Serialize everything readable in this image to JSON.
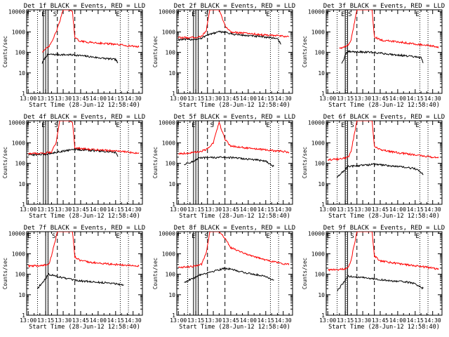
{
  "figure": {
    "black_color": "#000000",
    "red_color": "#ff0000"
  },
  "chart_data": [
    {
      "type": "line",
      "title": "Det 1f BLACK = Events, RED = LLD",
      "xlabel": "Start Time (28-Jun-12 12:58:40)",
      "ylabel": "Counts/sec",
      "x_ticks": [
        "13:00",
        "13:15",
        "13:30",
        "13:45",
        "14:00",
        "14:15",
        "14:30"
      ],
      "y_ticks": [
        "1",
        "10",
        "100",
        "1000",
        "10000"
      ],
      "xlim": [
        "12:58:40",
        "14:38:00"
      ],
      "ylim": [
        1,
        12000
      ],
      "y_scale": "log",
      "markers": [
        {
          "time": "13:13",
          "label": "E"
        },
        {
          "time": "13:23",
          "label": "S"
        },
        {
          "time": "14:17",
          "label": "E"
        }
      ],
      "vlines_dotted": [
        "13:08",
        "13:17",
        "14:19",
        "14:26"
      ],
      "vlines_solid": [
        "13:13",
        "13:15",
        "13:17"
      ],
      "vlines_dashed": [
        "13:25",
        "13:40"
      ],
      "series": [
        {
          "color": "black",
          "x": [
            "13:12",
            "13:14",
            "13:15",
            "13:16",
            "13:17",
            "13:40",
            "13:50",
            "14:00",
            "14:10",
            "14:15",
            "14:17"
          ],
          "y": [
            30,
            50,
            60,
            70,
            80,
            75,
            65,
            55,
            48,
            45,
            30
          ]
        },
        {
          "color": "red",
          "x": [
            "13:12",
            "13:14",
            "13:16",
            "13:18",
            "13:20",
            "13:25",
            "13:30",
            "13:35",
            "13:38",
            "13:40",
            "13:45",
            "13:50",
            "14:00",
            "14:10",
            "14:20",
            "14:30",
            "14:35"
          ],
          "y": [
            110,
            130,
            160,
            200,
            300,
            1400,
            12000,
            12000,
            10000,
            500,
            350,
            320,
            290,
            260,
            230,
            200,
            190
          ]
        }
      ]
    },
    {
      "type": "line",
      "title": "Det 2f BLACK = Events, RED = LLD",
      "xlabel": "Start Time (28-Jun-12 12:58:40)",
      "ylabel": "Counts/sec",
      "x_ticks": [
        "13:00",
        "13:15",
        "13:30",
        "13:45",
        "14:00",
        "14:15",
        "14:30"
      ],
      "y_ticks": [
        "1",
        "10",
        "100",
        "1000",
        "10000"
      ],
      "xlim": [
        "12:58:40",
        "14:38:00"
      ],
      "ylim": [
        1,
        12000
      ],
      "y_scale": "log",
      "markers": [
        {
          "time": "13:13",
          "label": "E"
        },
        {
          "time": "13:24",
          "label": "S"
        },
        {
          "time": "14:17",
          "label": "E"
        }
      ],
      "vlines_dotted": [
        "13:08",
        "13:17",
        "14:19",
        "14:26"
      ],
      "vlines_solid": [
        "13:13",
        "13:15",
        "13:17"
      ],
      "vlines_dashed": [
        "13:25",
        "13:40"
      ],
      "series": [
        {
          "color": "black",
          "x": [
            "13:00",
            "13:10",
            "13:15",
            "13:20",
            "13:24",
            "13:35",
            "13:40",
            "13:45",
            "14:00",
            "14:15",
            "14:25",
            "14:28"
          ],
          "y": [
            420,
            430,
            440,
            470,
            700,
            1000,
            1000,
            800,
            650,
            560,
            480,
            250
          ]
        },
        {
          "color": "red",
          "x": [
            "13:00",
            "13:10",
            "13:15",
            "13:20",
            "13:24",
            "13:27",
            "13:35",
            "13:40",
            "13:45",
            "14:00",
            "14:15",
            "14:30",
            "14:35"
          ],
          "y": [
            520,
            530,
            550,
            600,
            1200,
            12000,
            12000,
            2000,
            1000,
            850,
            700,
            620,
            590
          ]
        }
      ]
    },
    {
      "type": "line",
      "title": "Det 3f BLACK = Events, RED = LLD",
      "xlabel": "Start Time (28-Jun-12 12:58:40)",
      "ylabel": "Counts/sec",
      "x_ticks": [
        "13:00",
        "13:15",
        "13:30",
        "13:45",
        "14:00",
        "14:15",
        "14:30"
      ],
      "y_ticks": [
        "1",
        "10",
        "100",
        "1000",
        "10000"
      ],
      "xlim": [
        "12:58:40",
        "14:38:00"
      ],
      "ylim": [
        1,
        12000
      ],
      "y_scale": "log",
      "markers": [
        {
          "time": "13:13",
          "label": "E"
        },
        {
          "time": "13:19",
          "label": "S"
        },
        {
          "time": "14:17",
          "label": "E"
        }
      ],
      "vlines_dotted": [
        "13:08",
        "13:16",
        "14:19",
        "14:26"
      ],
      "vlines_solid": [
        "13:15",
        "13:17"
      ],
      "vlines_dashed": [
        "13:25",
        "13:40"
      ],
      "series": [
        {
          "color": "black",
          "x": [
            "13:12",
            "13:14",
            "13:15",
            "13:16",
            "13:17",
            "13:40",
            "13:50",
            "14:00",
            "14:10",
            "14:15",
            "14:20",
            "14:22"
          ],
          "y": [
            30,
            50,
            70,
            90,
            110,
            100,
            85,
            75,
            65,
            60,
            55,
            30
          ]
        },
        {
          "color": "red",
          "x": [
            "13:10",
            "13:14",
            "13:16",
            "13:18",
            "13:20",
            "13:25",
            "13:30",
            "13:38",
            "13:40",
            "13:45",
            "14:00",
            "14:15",
            "14:30",
            "14:35"
          ],
          "y": [
            160,
            180,
            200,
            250,
            400,
            12000,
            12000,
            12000,
            600,
            400,
            330,
            260,
            200,
            180
          ]
        }
      ]
    },
    {
      "type": "line",
      "title": "Det 4f BLACK = Events, RED = LLD",
      "xlabel": "Start Time (28-Jun-12 12:58:40)",
      "ylabel": "Counts/sec",
      "x_ticks": [
        "13:00",
        "13:15",
        "13:30",
        "13:45",
        "14:00",
        "14:15",
        "14:30"
      ],
      "y_ticks": [
        "1",
        "10",
        "100",
        "1000",
        "10000"
      ],
      "xlim": [
        "12:58:40",
        "14:38:00"
      ],
      "ylim": [
        1,
        12000
      ],
      "y_scale": "log",
      "markers": [
        {
          "time": "13:13",
          "label": "E"
        },
        {
          "time": "13:24",
          "label": "S"
        },
        {
          "time": "14:17",
          "label": "E"
        }
      ],
      "vlines_dotted": [
        "13:08",
        "13:17",
        "14:19",
        "14:26"
      ],
      "vlines_solid": [
        "13:13",
        "13:15",
        "13:17"
      ],
      "vlines_dashed": [
        "13:25",
        "13:40"
      ],
      "series": [
        {
          "color": "black",
          "x": [
            "13:00",
            "13:10",
            "13:15",
            "13:18",
            "13:40",
            "13:45",
            "14:00",
            "14:10",
            "14:15",
            "14:17"
          ],
          "y": [
            260,
            270,
            280,
            300,
            500,
            460,
            400,
            360,
            340,
            200
          ]
        },
        {
          "color": "red",
          "x": [
            "13:00",
            "13:10",
            "13:15",
            "13:20",
            "13:24",
            "13:27",
            "13:35",
            "13:38",
            "13:40",
            "13:45",
            "14:00",
            "14:10",
            "14:20",
            "14:30",
            "14:35"
          ],
          "y": [
            300,
            310,
            320,
            360,
            1000,
            12000,
            12000,
            10000,
            600,
            520,
            460,
            420,
            380,
            330,
            310
          ]
        }
      ]
    },
    {
      "type": "line",
      "title": "Det 5f BLACK = Events, RED = LLD",
      "xlabel": "Start Time (28-Jun-12 12:58:40)",
      "ylabel": "Counts/sec",
      "x_ticks": [
        "13:00",
        "13:15",
        "13:30",
        "13:45",
        "14:00",
        "14:15",
        "14:30"
      ],
      "y_ticks": [
        "1",
        "10",
        "100",
        "1000",
        "10000"
      ],
      "xlim": [
        "12:58:40",
        "14:38:00"
      ],
      "ylim": [
        1,
        12000
      ],
      "y_scale": "log",
      "markers": [
        {
          "time": "13:13",
          "label": "E"
        },
        {
          "time": "13:29",
          "label": "S"
        },
        {
          "time": "14:17",
          "label": "E"
        }
      ],
      "vlines_dotted": [
        "13:08",
        "13:17",
        "14:19",
        "14:26"
      ],
      "vlines_solid": [
        "13:13",
        "13:15",
        "13:17"
      ],
      "vlines_dashed": [
        "13:25",
        "13:40"
      ],
      "series": [
        {
          "color": "black",
          "x": [
            "13:05",
            "13:10",
            "13:15",
            "13:17",
            "13:40",
            "13:50",
            "14:00",
            "14:10",
            "14:15",
            "14:22"
          ],
          "y": [
            90,
            110,
            140,
            180,
            200,
            180,
            160,
            140,
            130,
            70
          ]
        },
        {
          "color": "red",
          "x": [
            "13:00",
            "13:10",
            "13:15",
            "13:20",
            "13:25",
            "13:30",
            "13:35",
            "13:40",
            "13:45",
            "14:00",
            "14:15",
            "14:30",
            "14:35"
          ],
          "y": [
            300,
            320,
            350,
            400,
            500,
            1000,
            10000,
            1500,
            700,
            550,
            450,
            380,
            350
          ]
        }
      ]
    },
    {
      "type": "line",
      "title": "Det 6f BLACK = Events, RED = LLD",
      "xlabel": "Start Time (28-Jun-12 12:58:40)",
      "ylabel": "Counts/sec",
      "x_ticks": [
        "13:00",
        "13:15",
        "13:30",
        "13:45",
        "14:00",
        "14:15",
        "14:30"
      ],
      "y_ticks": [
        "1",
        "10",
        "100",
        "1000",
        "10000"
      ],
      "xlim": [
        "12:58:40",
        "14:38:00"
      ],
      "ylim": [
        1,
        12000
      ],
      "y_scale": "log",
      "markers": [
        {
          "time": "13:13",
          "label": "E"
        },
        {
          "time": "13:21",
          "label": "S"
        },
        {
          "time": "14:17",
          "label": "E"
        }
      ],
      "vlines_dotted": [
        "13:08",
        "13:16",
        "14:19",
        "14:26"
      ],
      "vlines_solid": [
        "13:15",
        "13:17"
      ],
      "vlines_dashed": [
        "13:25",
        "13:40"
      ],
      "series": [
        {
          "color": "black",
          "x": [
            "13:08",
            "13:12",
            "13:15",
            "13:17",
            "13:40",
            "13:50",
            "14:00",
            "14:10",
            "14:15",
            "14:22"
          ],
          "y": [
            20,
            35,
            50,
            70,
            90,
            80,
            70,
            60,
            55,
            30
          ]
        },
        {
          "color": "red",
          "x": [
            "13:00",
            "13:10",
            "13:15",
            "13:18",
            "13:20",
            "13:25",
            "13:30",
            "13:38",
            "13:40",
            "13:45",
            "14:00",
            "14:15",
            "14:30",
            "14:35"
          ],
          "y": [
            150,
            160,
            180,
            220,
            400,
            12000,
            12000,
            12000,
            700,
            450,
            330,
            260,
            200,
            180
          ]
        }
      ]
    },
    {
      "type": "line",
      "title": "Det 7f BLACK = Events, RED = LLD",
      "xlabel": "Start Time (28-Jun-12 12:58:40)",
      "ylabel": "Counts/sec",
      "x_ticks": [
        "13:00",
        "13:15",
        "13:30",
        "13:45",
        "14:00",
        "14:15",
        "14:30"
      ],
      "y_ticks": [
        "1",
        "10",
        "100",
        "1000",
        "10000"
      ],
      "xlim": [
        "12:58:40",
        "14:38:00"
      ],
      "ylim": [
        1,
        12000
      ],
      "y_scale": "log",
      "markers": [
        {
          "time": "13:01",
          "label": "E"
        },
        {
          "time": "13:22",
          "label": "S"
        },
        {
          "time": "14:17",
          "label": "E"
        }
      ],
      "vlines_dotted": [
        "13:08",
        "13:17",
        "14:19",
        "14:26"
      ],
      "vlines_solid": [
        "13:15",
        "13:17"
      ],
      "vlines_dashed": [
        "13:25",
        "13:40"
      ],
      "series": [
        {
          "color": "black",
          "x": [
            "13:08",
            "13:12",
            "13:15",
            "13:17",
            "13:40",
            "13:50",
            "14:00",
            "14:10",
            "14:15",
            "14:22"
          ],
          "y": [
            20,
            40,
            60,
            100,
            50,
            45,
            40,
            38,
            35,
            30
          ]
        },
        {
          "color": "red",
          "x": [
            "13:00",
            "13:10",
            "13:15",
            "13:18",
            "13:20",
            "13:25",
            "13:30",
            "13:38",
            "13:40",
            "13:45",
            "14:00",
            "14:15",
            "14:30",
            "14:35"
          ],
          "y": [
            250,
            260,
            280,
            350,
            800,
            12000,
            12000,
            12000,
            700,
            450,
            350,
            300,
            260,
            250
          ]
        }
      ]
    },
    {
      "type": "line",
      "title": "Det 8f BLACK = Events, RED = LLD",
      "xlabel": "Start Time (28-Jun-12 12:58:40)",
      "ylabel": "Counts/sec",
      "x_ticks": [
        "13:00",
        "13:15",
        "13:30",
        "13:45",
        "14:00",
        "14:15",
        "14:30"
      ],
      "y_ticks": [
        "1",
        "10",
        "100",
        "1000",
        "10000"
      ],
      "xlim": [
        "12:58:40",
        "14:38:00"
      ],
      "ylim": [
        1,
        12000
      ],
      "y_scale": "log",
      "markers": [
        {
          "time": "13:13",
          "label": "E"
        },
        {
          "time": "13:24",
          "label": "S"
        },
        {
          "time": "14:17",
          "label": "E"
        }
      ],
      "vlines_dotted": [
        "13:08",
        "13:17",
        "14:19",
        "14:26"
      ],
      "vlines_solid": [
        "13:13",
        "13:15",
        "13:17"
      ],
      "vlines_dashed": [
        "13:25",
        "13:40"
      ],
      "series": [
        {
          "color": "black",
          "x": [
            "13:05",
            "13:10",
            "13:15",
            "13:17",
            "13:40",
            "13:50",
            "14:00",
            "14:10",
            "14:15",
            "14:22"
          ],
          "y": [
            40,
            55,
            70,
            90,
            200,
            150,
            110,
            90,
            80,
            50
          ]
        },
        {
          "color": "red",
          "x": [
            "13:00",
            "13:10",
            "13:15",
            "13:20",
            "13:24",
            "13:27",
            "13:35",
            "13:40",
            "13:45",
            "14:00",
            "14:15",
            "14:30",
            "14:35"
          ],
          "y": [
            220,
            230,
            260,
            300,
            1200,
            12000,
            12000,
            6000,
            2000,
            900,
            500,
            330,
            300
          ]
        }
      ]
    },
    {
      "type": "line",
      "title": "Det 9f BLACK = Events, RED = LLD",
      "xlabel": "Start Time (28-Jun-12 12:58:40)",
      "ylabel": "Counts/sec",
      "x_ticks": [
        "13:00",
        "13:15",
        "13:30",
        "13:45",
        "14:00",
        "14:15",
        "14:30"
      ],
      "y_ticks": [
        "1",
        "10",
        "100",
        "1000",
        "10000"
      ],
      "xlim": [
        "12:58:40",
        "14:38:00"
      ],
      "ylim": [
        1,
        12000
      ],
      "y_scale": "log",
      "markers": [
        {
          "time": "13:01",
          "label": "E"
        },
        {
          "time": "13:21",
          "label": "S"
        },
        {
          "time": "14:17",
          "label": "E"
        }
      ],
      "vlines_dotted": [
        "13:08",
        "13:16",
        "14:19",
        "14:26"
      ],
      "vlines_solid": [
        "13:15",
        "13:17"
      ],
      "vlines_dashed": [
        "13:25",
        "13:40"
      ],
      "series": [
        {
          "color": "black",
          "x": [
            "13:08",
            "13:12",
            "13:15",
            "13:17",
            "13:40",
            "13:50",
            "14:00",
            "14:10",
            "14:15",
            "14:22"
          ],
          "y": [
            15,
            30,
            50,
            80,
            60,
            50,
            45,
            40,
            35,
            20
          ]
        },
        {
          "color": "red",
          "x": [
            "13:00",
            "13:10",
            "13:15",
            "13:18",
            "13:20",
            "13:25",
            "13:30",
            "13:38",
            "13:40",
            "13:45",
            "14:00",
            "14:15",
            "14:30",
            "14:35"
          ],
          "y": [
            160,
            170,
            190,
            250,
            500,
            12000,
            12000,
            12000,
            800,
            450,
            330,
            260,
            200,
            180
          ]
        }
      ]
    }
  ]
}
